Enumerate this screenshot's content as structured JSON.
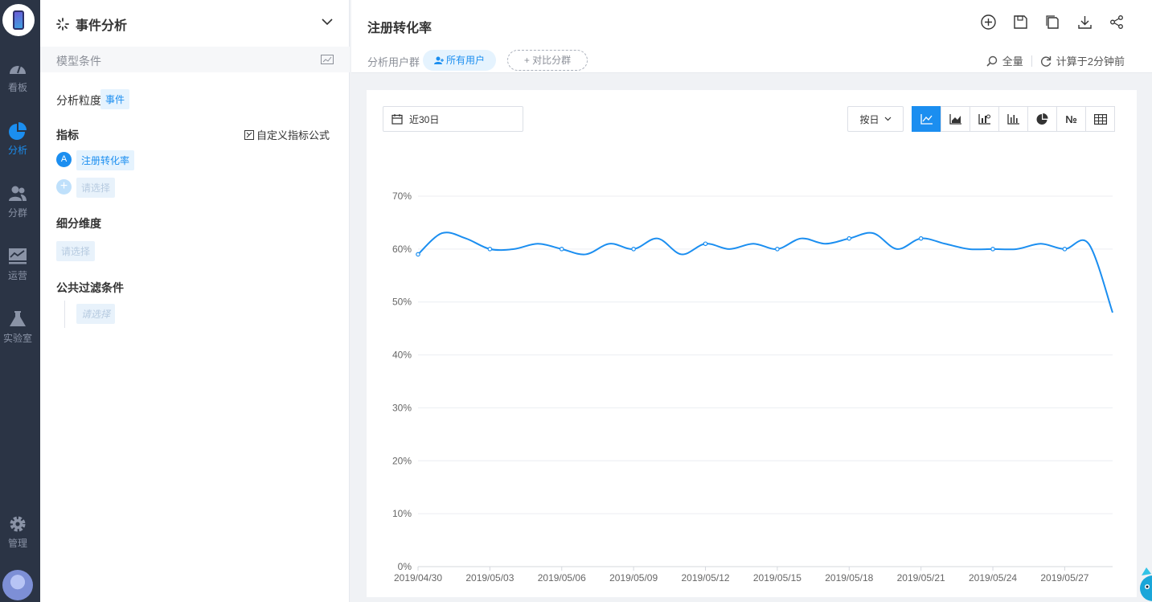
{
  "nav": {
    "items": [
      {
        "label": "看板",
        "icon": "dashboard-gauge-icon"
      },
      {
        "label": "分析",
        "icon": "pie-chart-icon",
        "active": true
      },
      {
        "label": "分群",
        "icon": "users-group-icon"
      },
      {
        "label": "运营",
        "icon": "monitor-chart-icon"
      },
      {
        "label": "实验室",
        "icon": "flask-icon"
      },
      {
        "label": "管理",
        "icon": "gear-icon"
      }
    ]
  },
  "panel": {
    "title": "事件分析",
    "model_conditions": "模型条件",
    "granularity_label": "分析粒度",
    "granularity_value": "事件",
    "metrics_label": "指标",
    "custom_formula": "自定义指标公式",
    "metric_a_badge": "A",
    "metric_a": "注册转化率",
    "metric_placeholder": "请选择",
    "breakdown_label": "细分维度",
    "breakdown_placeholder": "请选择",
    "filter_label": "公共过滤条件",
    "filter_placeholder": "请选择"
  },
  "header": {
    "title": "注册转化率",
    "segment_label": "分析用户群",
    "segment_value": "所有用户",
    "compare_label": "+ 对比分群",
    "scope": "全量",
    "computed": "计算于2分钟前"
  },
  "toolbar": {
    "date_range": "近30日",
    "group_by": "按日",
    "chart_type_extra": "№"
  },
  "colors": {
    "accent": "#1b8ef0",
    "nav_bg": "#2b3445"
  },
  "chart_data": {
    "type": "line",
    "title": "",
    "xlabel": "",
    "ylabel": "",
    "ylim": [
      0,
      70
    ],
    "y_ticks": [
      "0%",
      "10%",
      "20%",
      "30%",
      "40%",
      "50%",
      "60%",
      "70%"
    ],
    "x_tick_labels": [
      "2019/04/30",
      "2019/05/03",
      "2019/05/06",
      "2019/05/09",
      "2019/05/12",
      "2019/05/15",
      "2019/05/18",
      "2019/05/21",
      "2019/05/24",
      "2019/05/27"
    ],
    "x": [
      "2019/04/30",
      "2019/05/01",
      "2019/05/02",
      "2019/05/03",
      "2019/05/04",
      "2019/05/05",
      "2019/05/06",
      "2019/05/07",
      "2019/05/08",
      "2019/05/09",
      "2019/05/10",
      "2019/05/11",
      "2019/05/12",
      "2019/05/13",
      "2019/05/14",
      "2019/05/15",
      "2019/05/16",
      "2019/05/17",
      "2019/05/18",
      "2019/05/19",
      "2019/05/20",
      "2019/05/21",
      "2019/05/22",
      "2019/05/23",
      "2019/05/24",
      "2019/05/25",
      "2019/05/26",
      "2019/05/27",
      "2019/05/28",
      "2019/05/29"
    ],
    "series": [
      {
        "values": [
          59,
          63,
          62,
          60,
          60,
          61,
          60,
          59,
          61,
          60,
          62,
          59,
          61,
          60,
          61,
          60,
          62,
          61,
          62,
          63,
          60,
          62,
          61,
          60,
          60,
          60,
          61,
          60,
          61,
          48
        ]
      }
    ],
    "grid": true,
    "legend": "none"
  }
}
